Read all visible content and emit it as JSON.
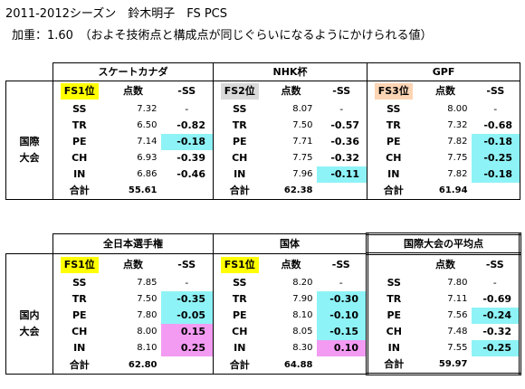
{
  "title": "2011-2012シーズン　鈴木明子　FS PCS",
  "subtitle": "加重：1.60　（およそ技術点と構成点が同じぐらいになるようにかけられる値）",
  "colors": {
    "cyan": "#8ef3f6",
    "pink": "#f39bf3",
    "yellow": "#ffff00",
    "gray": "#d9d9d9",
    "peach": "#fcd5b4"
  },
  "intl": {
    "row_label": "国際\n大会",
    "row_label_l1": "国際",
    "row_label_l2": "大会",
    "components": [
      "SS",
      "TR",
      "PE",
      "CH",
      "IN"
    ],
    "total_label": "合計",
    "score_header": "点数",
    "diff_header": "-SS",
    "events": [
      {
        "name": "スケートカナダ",
        "place": "FS1位",
        "place_color": "#ffff00",
        "scores": [
          "7.32",
          "6.50",
          "7.14",
          "6.93",
          "6.86"
        ],
        "diffs": [
          "-",
          "-0.82",
          "-0.18",
          "-0.39",
          "-0.46"
        ],
        "total": "55.61"
      },
      {
        "name": "NHK杯",
        "place": "FS2位",
        "place_color": "#d9d9d9",
        "scores": [
          "8.07",
          "7.50",
          "7.71",
          "7.75",
          "7.96"
        ],
        "diffs": [
          "-",
          "-0.57",
          "-0.36",
          "-0.32",
          "-0.11"
        ],
        "total": "62.38"
      },
      {
        "name": "GPF",
        "place": "FS3位",
        "place_color": "#fcd5b4",
        "scores": [
          "8.00",
          "7.32",
          "7.82",
          "7.75",
          "7.82"
        ],
        "diffs": [
          "-",
          "-0.68",
          "-0.18",
          "-0.25",
          "-0.18"
        ],
        "total": "61.94"
      }
    ]
  },
  "dom": {
    "row_label_l1": "国内",
    "row_label_l2": "大会",
    "components": [
      "SS",
      "TR",
      "PE",
      "CH",
      "IN"
    ],
    "total_label": "合計",
    "score_header": "点数",
    "diff_header": "-SS",
    "events": [
      {
        "name": "全日本選手権",
        "place": "FS1位",
        "place_color": "#ffff00",
        "scores": [
          "7.85",
          "7.50",
          "7.80",
          "8.00",
          "8.10"
        ],
        "diffs": [
          "-",
          "-0.35",
          "-0.05",
          "0.15",
          "0.25"
        ],
        "total": "62.80"
      },
      {
        "name": "国体",
        "place": "FS1位",
        "place_color": "#ffff00",
        "scores": [
          "8.20",
          "7.90",
          "8.10",
          "8.05",
          "8.30"
        ],
        "diffs": [
          "-",
          "-0.30",
          "-0.10",
          "-0.15",
          "0.10"
        ],
        "total": "64.88"
      },
      {
        "name": "国際大会の平均点",
        "place": "",
        "place_color": "",
        "scores": [
          "7.80",
          "7.11",
          "7.56",
          "7.48",
          "7.55"
        ],
        "diffs": [
          "-",
          "-0.69",
          "-0.24",
          "-0.32",
          "-0.25"
        ],
        "total": "59.97"
      }
    ]
  }
}
